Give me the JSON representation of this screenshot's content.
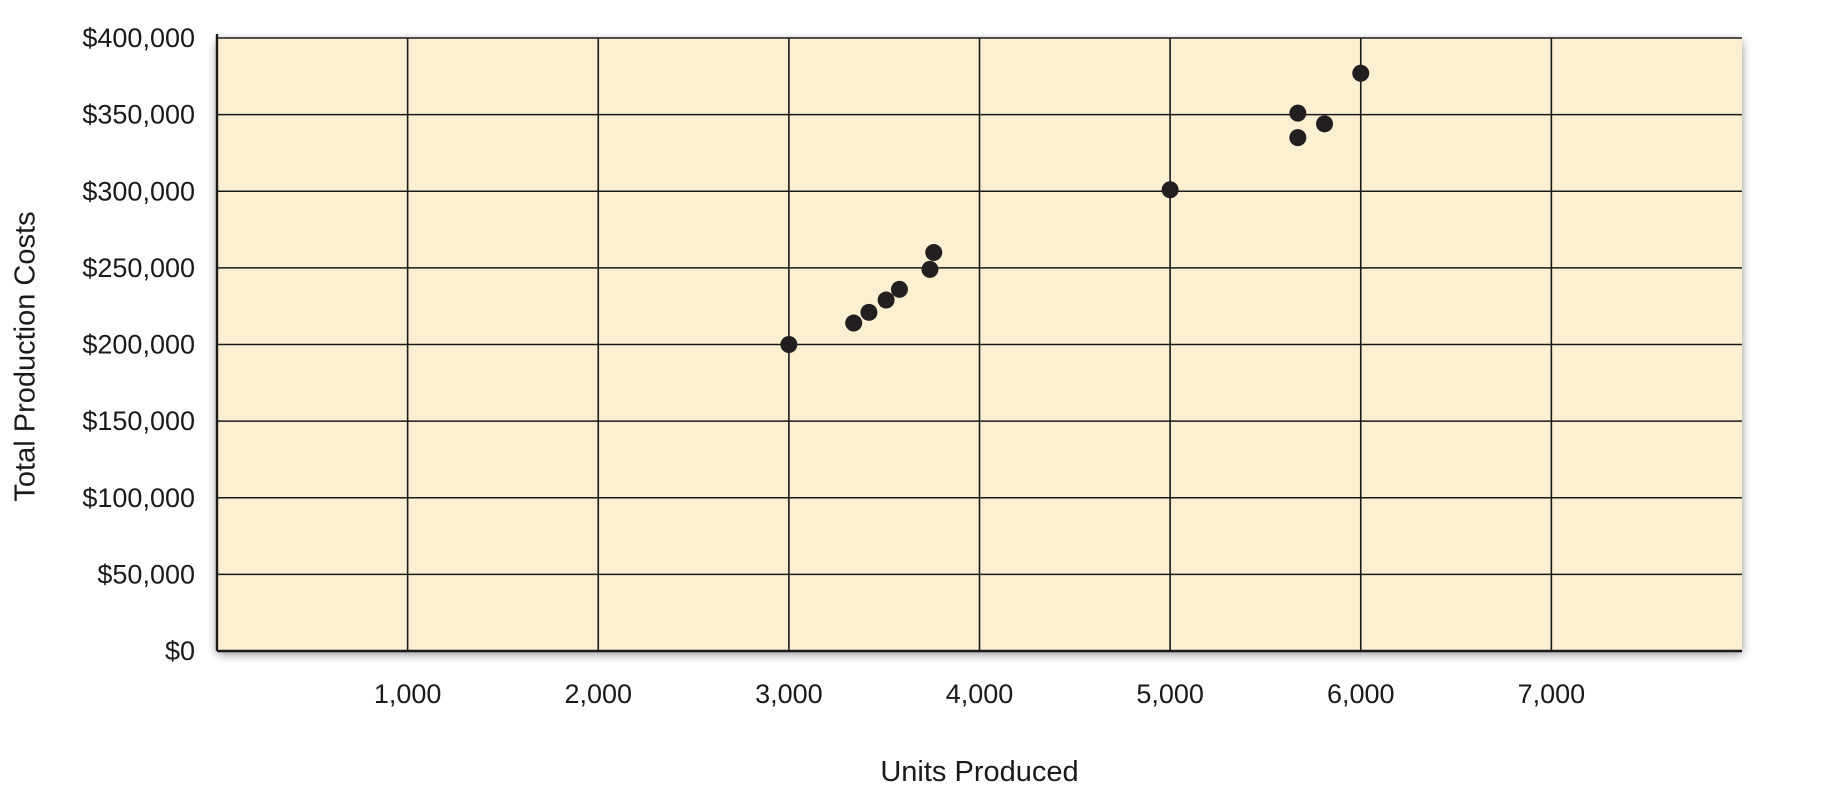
{
  "chart_data": {
    "type": "scatter",
    "title": "",
    "xlabel": "Units Produced",
    "ylabel": "Total Production Costs",
    "xlim": [
      0,
      8000
    ],
    "ylim": [
      0,
      400000
    ],
    "x_ticks": [
      1000,
      2000,
      3000,
      4000,
      5000,
      6000,
      7000
    ],
    "x_tick_labels": [
      "1,000",
      "2,000",
      "3,000",
      "4,000",
      "5,000",
      "6,000",
      "7,000"
    ],
    "y_ticks": [
      0,
      50000,
      100000,
      150000,
      200000,
      250000,
      300000,
      350000,
      400000
    ],
    "y_tick_labels": [
      "$0",
      "$50,000",
      "$100,000",
      "$150,000",
      "$200,000",
      "$250,000",
      "$300,000",
      "$350,000",
      "$400,000"
    ],
    "grid": true,
    "legend": "none",
    "colors": {
      "plot_background": "#fdefd2",
      "grid_lines": "#1a1a1a",
      "points": "#231f20"
    },
    "points": [
      {
        "x": 3000,
        "y": 200000
      },
      {
        "x": 3340,
        "y": 214000
      },
      {
        "x": 3420,
        "y": 221000
      },
      {
        "x": 3510,
        "y": 229000
      },
      {
        "x": 3580,
        "y": 236000
      },
      {
        "x": 3740,
        "y": 249000
      },
      {
        "x": 3760,
        "y": 260000
      },
      {
        "x": 5000,
        "y": 301000
      },
      {
        "x": 5670,
        "y": 335000
      },
      {
        "x": 5670,
        "y": 351000
      },
      {
        "x": 5810,
        "y": 344000
      },
      {
        "x": 6000,
        "y": 377000
      }
    ]
  }
}
